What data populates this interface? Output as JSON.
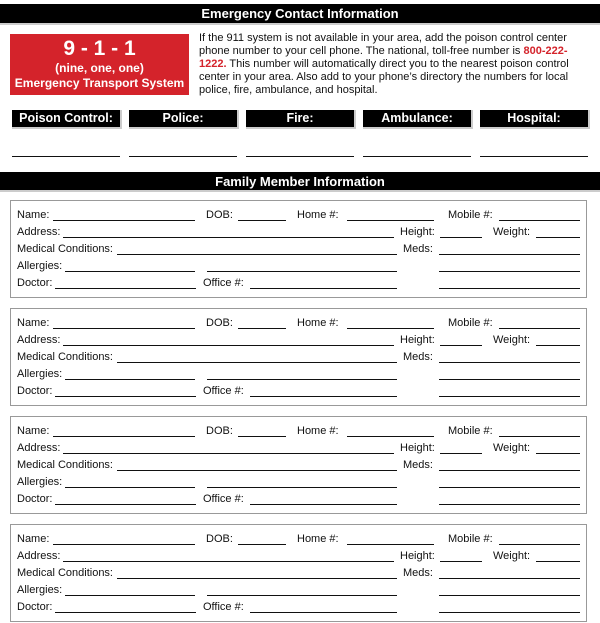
{
  "emergency": {
    "header": "Emergency Contact Information",
    "badge": {
      "number": "9 - 1 - 1",
      "spoken": "(nine, one, one)",
      "system": "Emergency Transport System"
    },
    "intro_before": "If the 911 system is not available in your area, add the poison control center phone number to your cell phone. The national, toll-free number is ",
    "phone": "800-222-1222.",
    "intro_after": " This number will automatically direct you to the nearest poison control center in your area. Also add to your phone’s directory the numbers for local police, fire, ambulance, and hospital.",
    "contacts": [
      "Poison Control:",
      "Police:",
      "Fire:",
      "Ambulance:",
      "Hospital:"
    ],
    "accent": "#d4232b"
  },
  "family": {
    "header": "Family Member Information",
    "labels": {
      "name": "Name:",
      "dob": "DOB:",
      "home": "Home #:",
      "mobile": "Mobile #:",
      "address": "Address:",
      "height": "Height:",
      "weight": "Weight:",
      "medical": "Medical Conditions:",
      "meds": "Meds:",
      "allergies": "Allergies:",
      "doctor": "Doctor:",
      "office": "Office #:"
    },
    "member_count": 4
  }
}
